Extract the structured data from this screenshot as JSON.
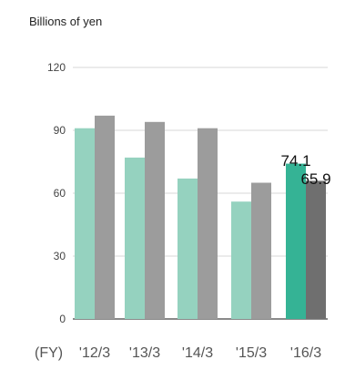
{
  "chart_data": {
    "type": "bar",
    "unit_label": "Billions of yen",
    "xlabel": "",
    "ylabel": "",
    "ylim": [
      0,
      120
    ],
    "yticks": [
      0,
      30,
      60,
      90,
      120
    ],
    "fy_prefix": "(FY)",
    "categories": [
      "'12/3",
      "'13/3",
      "'14/3",
      "'15/3",
      "'16/3"
    ],
    "series": [
      {
        "values": [
          91,
          77,
          67,
          56,
          74.1
        ],
        "color": "#95d2bf",
        "highlight_color": "#35b395"
      },
      {
        "values": [
          97,
          94,
          91,
          65,
          65.9
        ],
        "color": "#9c9c9c",
        "highlight_color": "#6f6f6f"
      }
    ],
    "data_labels": [
      "74.1",
      "65.9"
    ],
    "grid": false,
    "legend": "none"
  }
}
